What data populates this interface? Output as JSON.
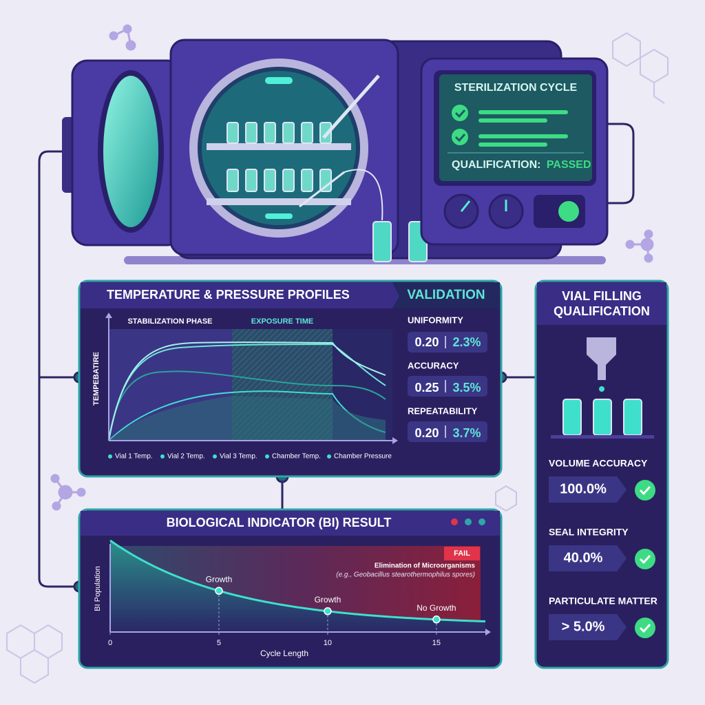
{
  "machine": {
    "screen_title": "STERILIZATION CYCLE",
    "qualification_label": "QUALIFICATION:",
    "qualification_status": "PASSED"
  },
  "profiles": {
    "title": "TEMPERATURE & PRESSURE PROFILES",
    "phases": [
      "STABILIZATION PHASE",
      "EXPOSURE TIME"
    ],
    "y_label": "TEMPEBATIRE",
    "legend": [
      "Vial 1 Temp.",
      "Vial 2 Temp.",
      "Vial 3 Temp.",
      "Chamber Temp.",
      "Chamber Pressure"
    ]
  },
  "validation": {
    "title": "VALIDATION",
    "metrics": [
      {
        "name": "UNIFORMITY",
        "value": "0.20",
        "percent": "2.3%"
      },
      {
        "name": "ACCURACY",
        "value": "0.25",
        "percent": "3.5%"
      },
      {
        "name": "REPEATABILITY",
        "value": "0.20",
        "percent": "3.7%"
      }
    ]
  },
  "bi": {
    "title": "BIOLOGICAL INDICATOR (BI) RESULT",
    "status": "FAIL",
    "annotation_title": "Elimination of Microorganisms",
    "annotation_note": "(e.g., Geobacillus stearothermophilus spores)",
    "y_label": "BI Population",
    "x_label": "Cycle Length",
    "xlim": [
      0,
      17.25
    ],
    "xticks": [
      0,
      5,
      10,
      15
    ],
    "points": [
      {
        "x": 5,
        "label": "Growth"
      },
      {
        "x": 10,
        "label": "Growth"
      },
      {
        "x": 15,
        "label": "No Growth"
      }
    ]
  },
  "vial": {
    "title": [
      "VIAL FILLING",
      "QUALIFICATION"
    ],
    "metrics": [
      {
        "name": "VOLUME ACCURACY",
        "value": "100.0%"
      },
      {
        "name": "SEAL INTEGRITY",
        "value": "40.0%"
      },
      {
        "name": "PARTICULATE MATTER",
        "value": "> 5.0%"
      }
    ]
  }
}
